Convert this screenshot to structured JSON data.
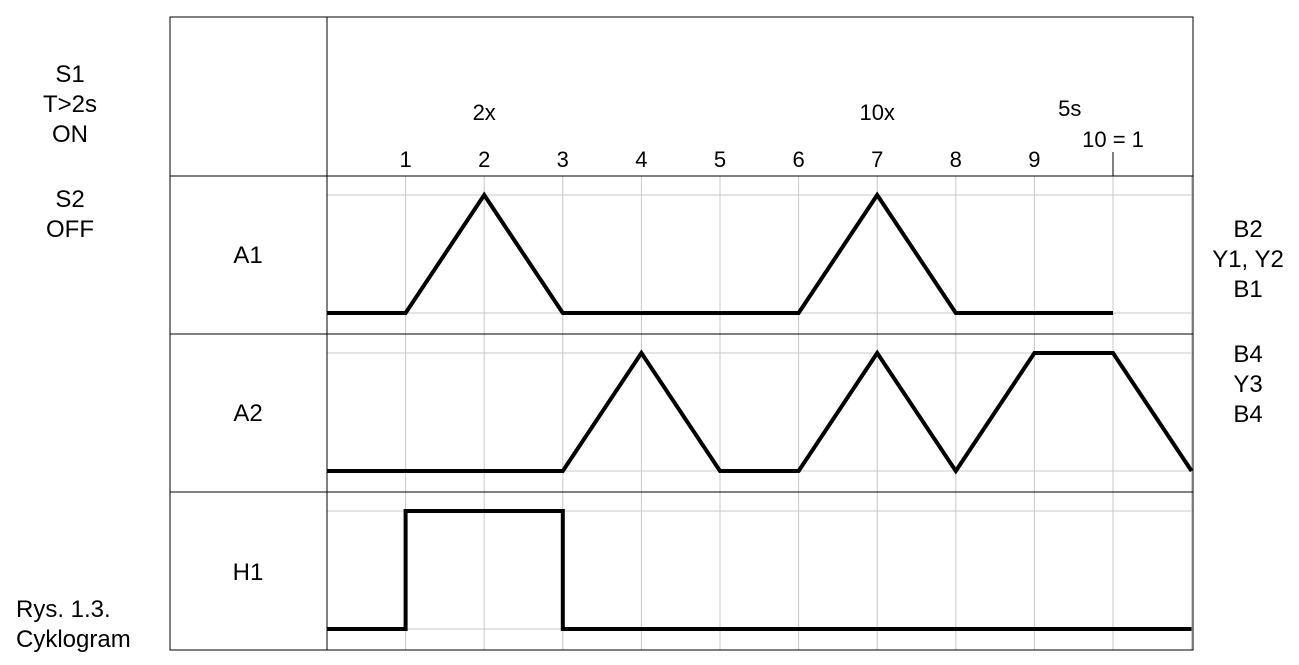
{
  "left_panel": {
    "s1": [
      "S1",
      "T>2s",
      "ON"
    ],
    "s2": [
      "S2",
      "OFF"
    ],
    "caption": [
      "Rys. 1.3.",
      "Cyklogram"
    ]
  },
  "header": {
    "step_labels": [
      "1",
      "2",
      "3",
      "4",
      "5",
      "6",
      "7",
      "8",
      "9"
    ],
    "end_label": "10 = 1",
    "annotations": [
      {
        "text": "2x",
        "step": 2
      },
      {
        "text": "10x",
        "step": 7
      },
      {
        "text": "5s",
        "step": 9.45
      }
    ]
  },
  "rows": [
    {
      "name": "A1",
      "kind": "actuator",
      "levels": [
        0,
        0,
        1,
        0,
        0,
        0,
        0,
        1,
        0,
        0,
        0
      ],
      "right_labels": [
        "B2",
        "Y1, Y2",
        "B1"
      ]
    },
    {
      "name": "A2",
      "kind": "actuator",
      "levels": [
        0,
        0,
        0,
        0,
        1,
        0,
        0,
        1,
        0,
        1,
        1,
        0
      ],
      "right_labels": [
        "B4",
        "Y3",
        "B4"
      ]
    },
    {
      "name": "H1",
      "kind": "signal",
      "segments": [
        [
          0,
          1,
          0
        ],
        [
          1,
          3,
          1
        ],
        [
          3,
          11,
          0
        ]
      ],
      "right_labels": []
    }
  ],
  "colors": {
    "line": "#000000",
    "grid": "#c8c8c8",
    "frame": "#000000"
  }
}
